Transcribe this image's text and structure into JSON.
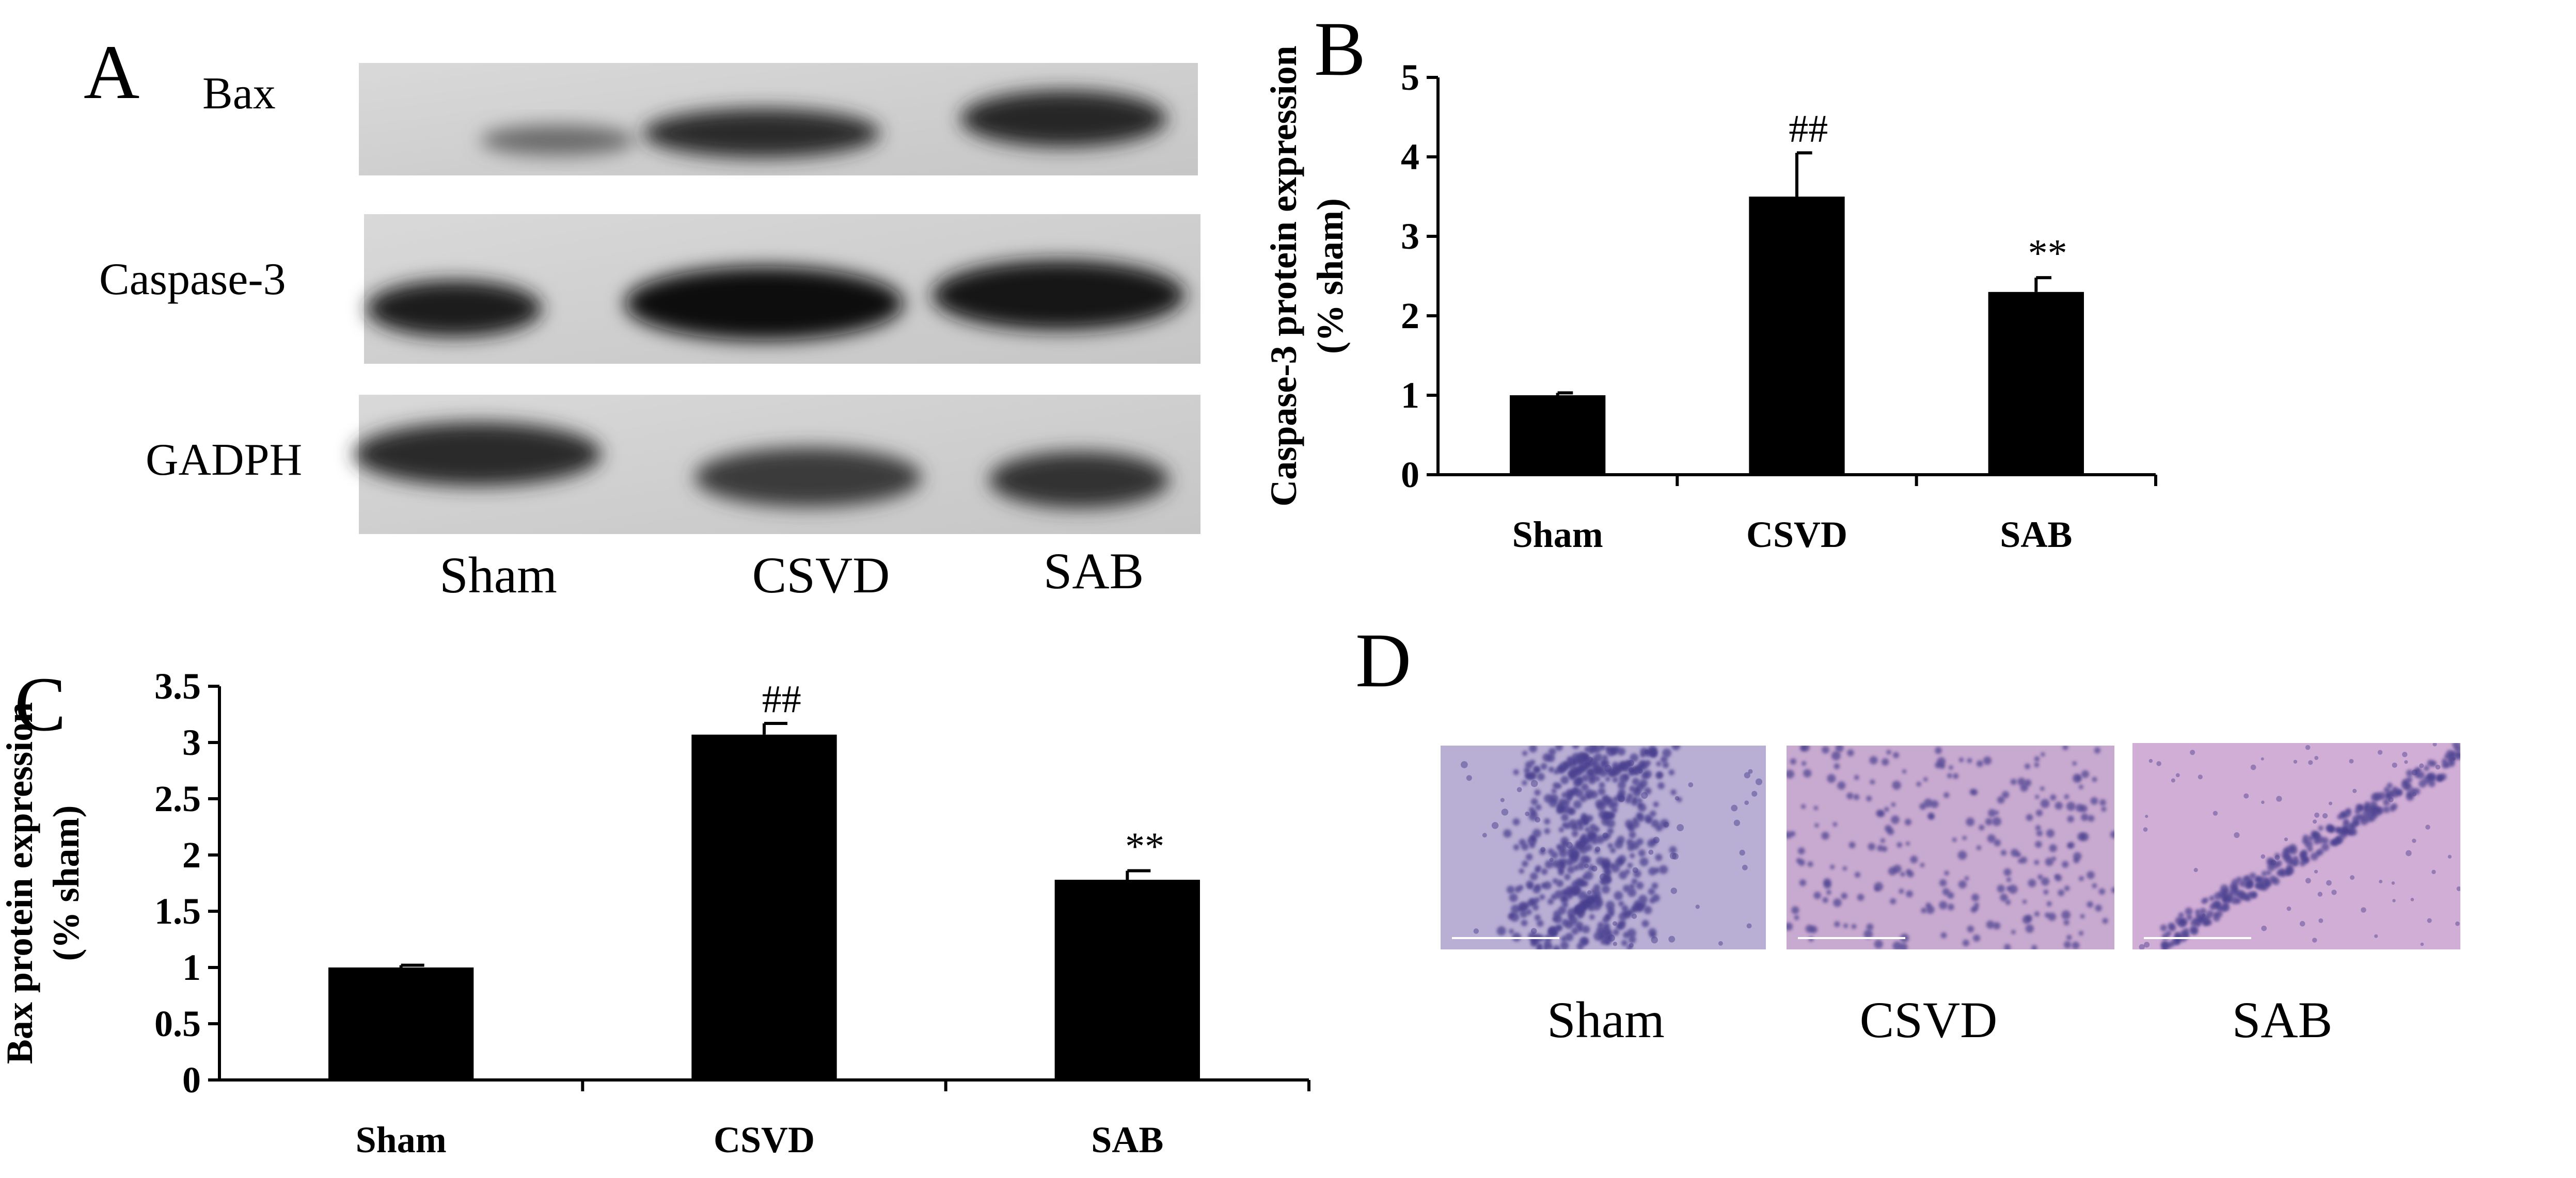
{
  "panels": {
    "a": {
      "letter": "A",
      "rows": [
        "Bax",
        "Caspase-3",
        "GADPH"
      ],
      "lanes": [
        "Sham",
        "CSVD",
        "SAB"
      ]
    },
    "b": {
      "letter": "B"
    },
    "c": {
      "letter": "C"
    },
    "d": {
      "letter": "D",
      "lanes": [
        "Sham",
        "CSVD",
        "SAB"
      ],
      "tissue_colors": [
        "#b9aed3",
        "#c8a9cf",
        "#d1aed5"
      ],
      "stain_color": "#4a3f8f"
    }
  },
  "chart_data": [
    {
      "type": "bar",
      "panel": "B",
      "categories": [
        "Sham",
        "CSVD",
        "SAB"
      ],
      "values": [
        1.0,
        3.5,
        2.3
      ],
      "errors": [
        0.03,
        0.55,
        0.18
      ],
      "annotations": [
        "",
        "##",
        "**"
      ],
      "ylabel_lines": [
        "Caspase-3 protein expression",
        "(% sham)"
      ],
      "ylim": [
        0,
        5
      ],
      "yticks": [
        "0",
        "1",
        "2",
        "3",
        "4",
        "5"
      ],
      "bar_color": "#000000"
    },
    {
      "type": "bar",
      "panel": "C",
      "categories": [
        "Sham",
        "CSVD",
        "SAB"
      ],
      "values": [
        1.0,
        3.07,
        1.78
      ],
      "errors": [
        0.02,
        0.1,
        0.08
      ],
      "annotations": [
        "",
        "##",
        "**"
      ],
      "ylabel_lines": [
        "Bax protein expression",
        "(% sham)"
      ],
      "ylim": [
        0,
        3.5
      ],
      "yticks": [
        "0",
        "0.5",
        "1",
        "1.5",
        "2",
        "2.5",
        "3",
        "3.5"
      ],
      "bar_color": "#000000"
    }
  ]
}
